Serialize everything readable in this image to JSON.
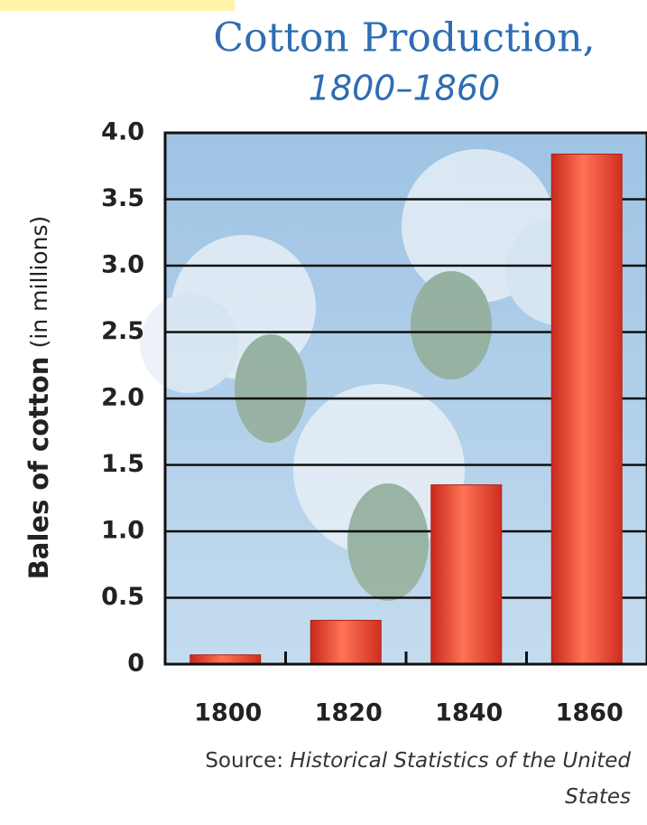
{
  "chart_data": {
    "type": "bar",
    "title": "Cotton Production,",
    "subtitle": "1800–1860",
    "ylabel": {
      "main": "Bales of cotton",
      "unit": "(in millions)"
    },
    "categories": [
      "1800",
      "1820",
      "1840",
      "1860"
    ],
    "values": [
      0.07,
      0.33,
      1.35,
      3.84
    ],
    "color": "#e8412c",
    "ylim": [
      0,
      4
    ],
    "yticks": [
      0,
      0.5,
      {
        "value": 1,
        "label": "1.0"
      },
      1.5,
      {
        "value": 2,
        "label": "2.0"
      },
      2.5,
      {
        "value": 3,
        "label": "3.0"
      },
      3.5,
      {
        "value": 4,
        "label": "4.0"
      }
    ],
    "grid": true,
    "source_label": "Source:",
    "source": "Historical Statistics of the United States"
  }
}
